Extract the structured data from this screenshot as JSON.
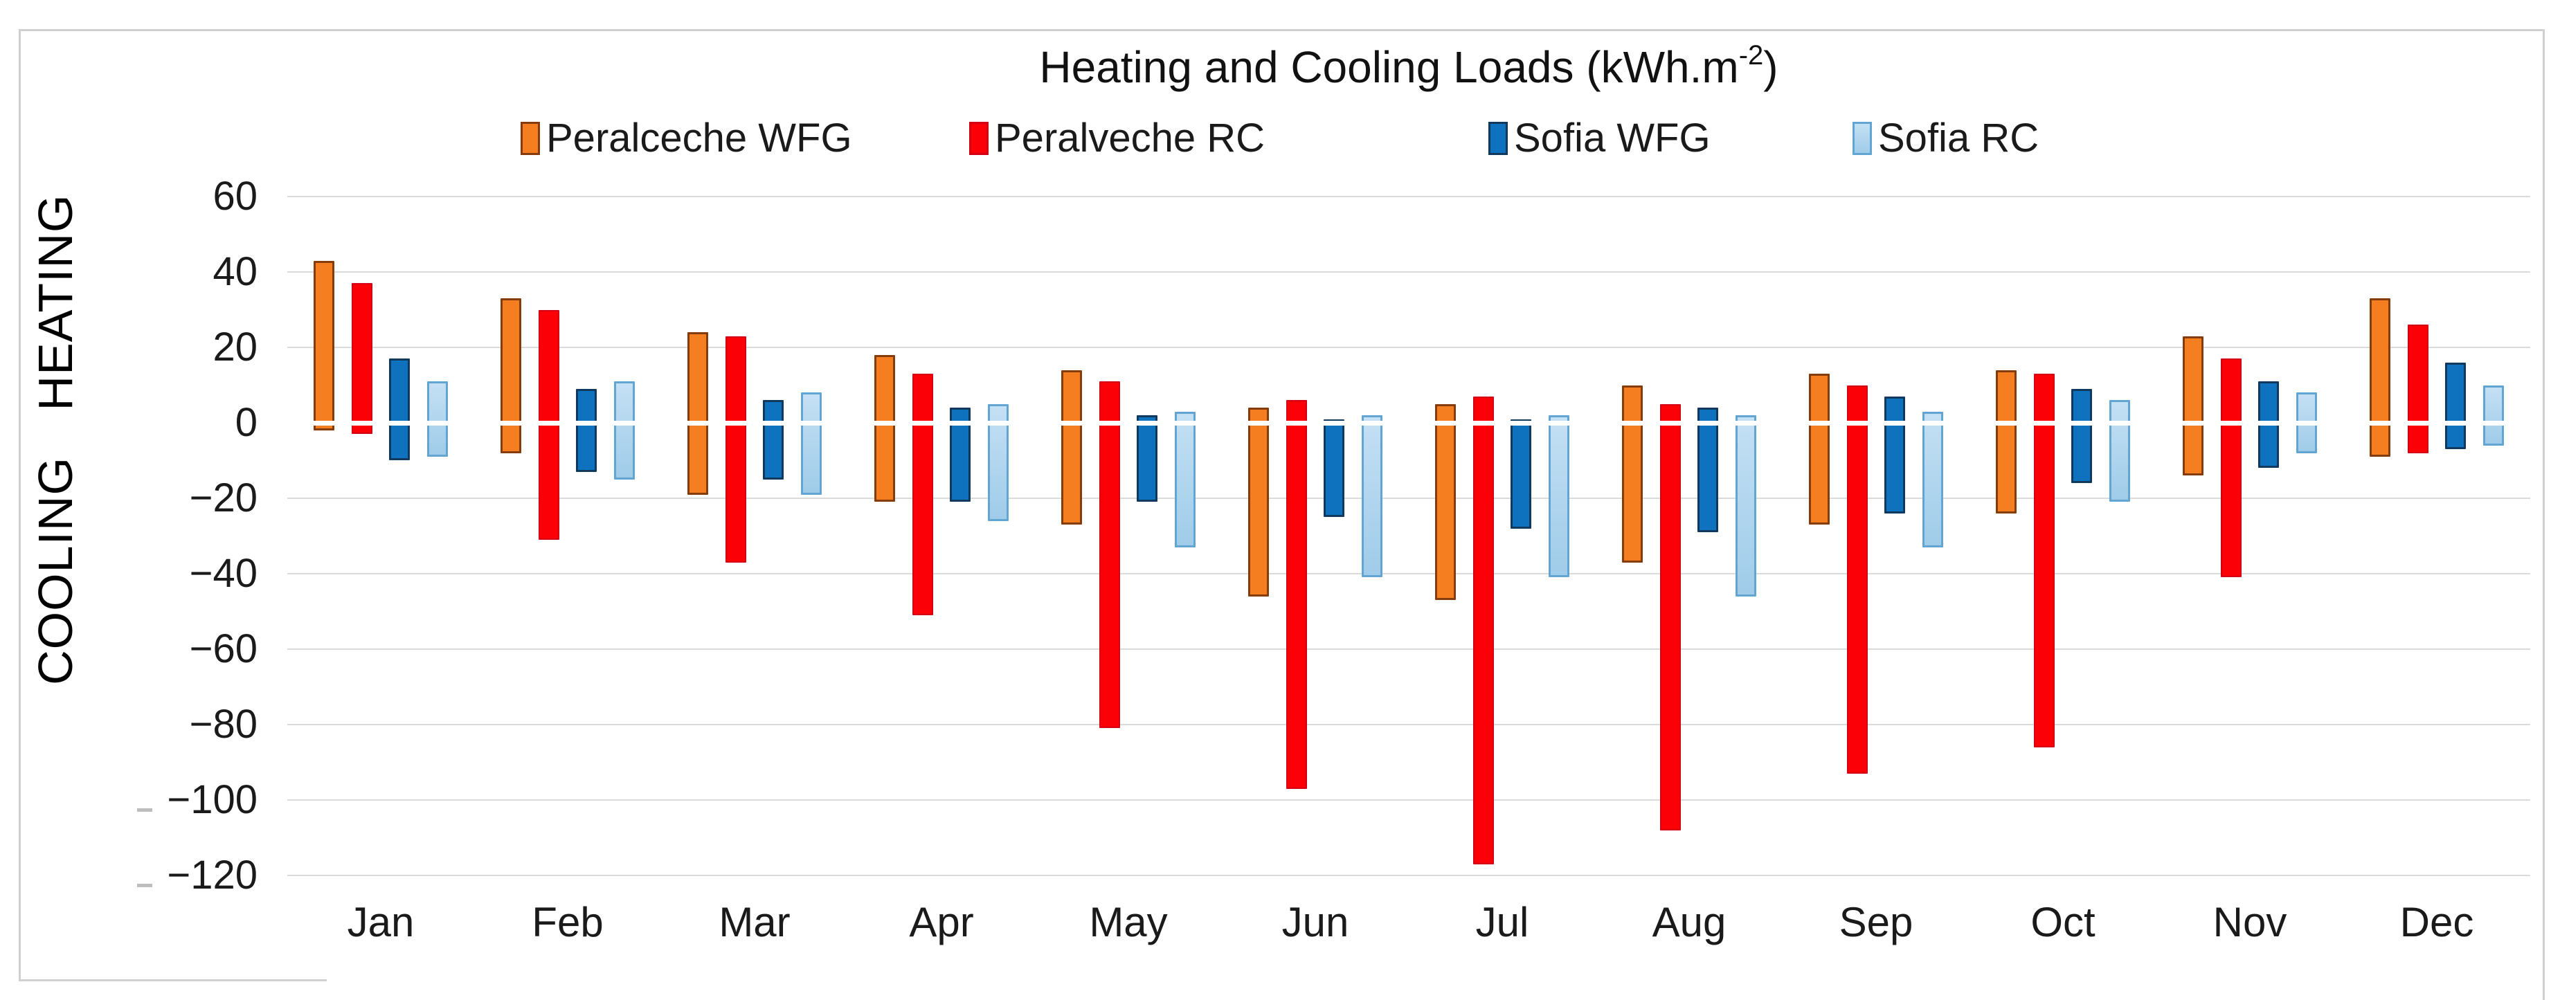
{
  "title": {
    "main": "Heating and Cooling Loads  (kWh.m",
    "sup": "-2",
    "close": ")"
  },
  "axis_left": {
    "heating": "HEATING",
    "cooling": "COOLING"
  },
  "legend": [
    {
      "label": "Peralceche WFG",
      "color": "#F57E20",
      "color2": "#F57E20",
      "border": "#843C0C"
    },
    {
      "label": "Peralveche RC",
      "color": "#FB0007",
      "color2": "#FB0007",
      "border": "#D10013"
    },
    {
      "label": "Sofia WFG",
      "color": "#0E72BE",
      "color2": "#0E72BE",
      "border": "#11395D"
    },
    {
      "label": "Sofia RC",
      "color": "#C4E0F4",
      "color2": "#9FCCE9",
      "border": "#63A5D2"
    }
  ],
  "chart_data": {
    "type": "bar",
    "subtype": "floating-range-columns",
    "title": "Heating and Cooling Loads (kWh.m⁻²)",
    "unit": "kWh.m⁻²",
    "xlabel": "",
    "ylabel": "COOLING / HEATING",
    "legend_position": "top",
    "grid": true,
    "categories": [
      "Jan",
      "Feb",
      "Mar",
      "Apr",
      "May",
      "Jun",
      "Jul",
      "Aug",
      "Sep",
      "Oct",
      "Nov",
      "Dec"
    ],
    "y_axis": {
      "min": -120,
      "max": 60,
      "step": 20,
      "ticks": [
        60,
        40,
        20,
        0,
        -20,
        -40,
        -60,
        -80,
        -100,
        -120
      ]
    },
    "series": [
      {
        "name": "Peralceche WFG",
        "color": "#F57E20",
        "color2": "#F57E20",
        "border": "#843C0C",
        "heating_max": [
          43,
          33,
          24,
          18,
          14,
          4,
          5,
          10,
          13,
          14,
          23,
          33
        ],
        "cooling_min": [
          -2,
          -8,
          -19,
          -21,
          -27,
          -46,
          -47,
          -37,
          -27,
          -24,
          -14,
          -9
        ]
      },
      {
        "name": "Peralveche RC",
        "color": "#FB0007",
        "color2": "#FB0007",
        "border": "#D10013",
        "heating_max": [
          37,
          30,
          23,
          13,
          11,
          6,
          7,
          5,
          10,
          13,
          17,
          26
        ],
        "cooling_min": [
          -3,
          -31,
          -37,
          -51,
          -81,
          -97,
          -117,
          -108,
          -93,
          -86,
          -41,
          -8
        ]
      },
      {
        "name": "Sofia WFG",
        "color": "#0E72BE",
        "color2": "#0E72BE",
        "border": "#11395D",
        "heating_max": [
          17,
          9,
          6,
          4,
          2,
          1,
          1,
          4,
          7,
          9,
          11,
          16
        ],
        "cooling_min": [
          -10,
          -13,
          -15,
          -21,
          -21,
          -25,
          -28,
          -29,
          -24,
          -16,
          -12,
          -7
        ]
      },
      {
        "name": "Sofia RC",
        "color": "#C4E0F4",
        "color2": "#9FCCE9",
        "border": "#63A5D2",
        "heating_max": [
          11,
          11,
          8,
          5,
          3,
          2,
          2,
          2,
          3,
          6,
          8,
          10
        ],
        "cooling_min": [
          -9,
          -15,
          -19,
          -26,
          -33,
          -41,
          -41,
          -46,
          -33,
          -21,
          -8,
          -6
        ]
      }
    ]
  }
}
